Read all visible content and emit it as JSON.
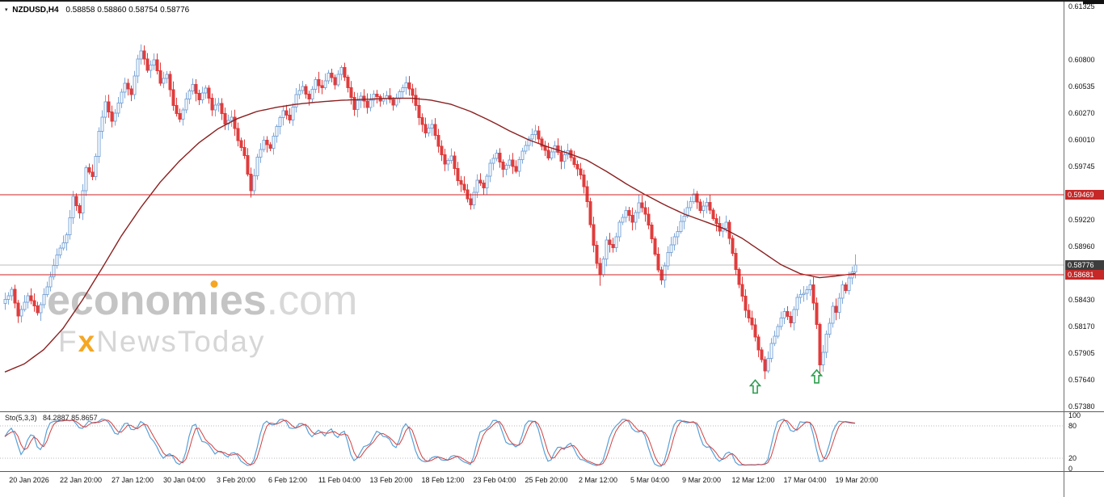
{
  "quote": {
    "symbol_timeframe": "NZDUSD,H4",
    "ohlc": "0.58858 0.58860 0.58754 0.58776",
    "dropdown_icon": "▾"
  },
  "watermark": {
    "brand_pre": "econom",
    "brand_i": "ı",
    "brand_post": "es",
    "brand_suffix": ".com",
    "tag_f": "F",
    "tag_x": "x",
    "tag_rest": "NewsToday"
  },
  "price_axis": {
    "labels": [
      {
        "t": "0.61325",
        "p": 0.61325
      },
      {
        "t": "0.60800",
        "p": 0.608
      },
      {
        "t": "0.60535",
        "p": 0.60535
      },
      {
        "t": "0.60270",
        "p": 0.6027
      },
      {
        "t": "0.60010",
        "p": 0.6001
      },
      {
        "t": "0.59745",
        "p": 0.59745
      },
      {
        "t": "0.59220",
        "p": 0.5922
      },
      {
        "t": "0.58960",
        "p": 0.5896
      },
      {
        "t": "0.58430",
        "p": 0.5843
      },
      {
        "t": "0.58170",
        "p": 0.5817
      },
      {
        "t": "0.57905",
        "p": 0.57905
      },
      {
        "t": "0.57640",
        "p": 0.5764
      },
      {
        "t": "0.57380",
        "p": 0.5738
      }
    ],
    "badges": [
      {
        "t": "0.59469",
        "p": 0.59469,
        "color": "#c62828",
        "kind": "level"
      },
      {
        "t": "0.58776",
        "p": 0.58776,
        "color": "#3d3d3d",
        "kind": "current"
      },
      {
        "t": "0.58681",
        "p": 0.58681,
        "color": "#c62828",
        "kind": "level"
      }
    ]
  },
  "time_axis": {
    "labels": [
      "20 Jan 2026",
      "22 Jan 20:00",
      "27 Jan 12:00",
      "30 Jan 04:00",
      "3 Feb 20:00",
      "6 Feb 12:00",
      "11 Feb 04:00",
      "13 Feb 20:00",
      "18 Feb 12:00",
      "23 Feb 04:00",
      "25 Feb 20:00",
      "2 Mar 12:00",
      "5 Mar 04:00",
      "9 Mar 20:00",
      "12 Mar 12:00",
      "17 Mar 04:00",
      "19 Mar 20:00"
    ]
  },
  "indicator": {
    "label": "Sto(5,3,3)",
    "values": "84.2887 85.8657",
    "axis": [
      {
        "t": "100",
        "v": 100
      },
      {
        "t": "80",
        "v": 80
      },
      {
        "t": "20",
        "v": 20
      },
      {
        "t": "0",
        "v": 0
      }
    ],
    "dotted_levels": [
      80,
      20
    ]
  },
  "colors": {
    "accent_orange": "#f5a623",
    "bull": "#7fa8d9",
    "bull_fill": "#ffffff",
    "bear": "#e03c3c",
    "ma_line": "#8b2020",
    "level_line": "#cc2222",
    "last_price_line": "#bdbdbd",
    "stoch_k": "#58a0d8",
    "stoch_d": "#d04040",
    "arrow_green": "#2f9e4f"
  },
  "chart_data": {
    "type": "candlestick",
    "symbol": "NZDUSD",
    "timeframe": "H4",
    "title": "NZDUSD H4 with 50-period MA, horizontal levels 0.59469 / 0.58681, Stochastic(5,3,3)",
    "ylim": [
      0.5738,
      0.61325
    ],
    "n_candles": 264,
    "last_close": 0.58776,
    "levels": {
      "resistance": 0.59469,
      "support": 0.58681,
      "last_price": 0.58776
    },
    "noise": 0.0003,
    "wick": 0.0006,
    "close_waypoints": [
      [
        0,
        0.5845
      ],
      [
        2,
        0.5852
      ],
      [
        4,
        0.5827
      ],
      [
        7,
        0.5848
      ],
      [
        10,
        0.5831
      ],
      [
        13,
        0.5856
      ],
      [
        16,
        0.5888
      ],
      [
        19,
        0.5906
      ],
      [
        21,
        0.5944
      ],
      [
        23,
        0.593
      ],
      [
        25,
        0.5974
      ],
      [
        27,
        0.5964
      ],
      [
        29,
        0.6008
      ],
      [
        31,
        0.6038
      ],
      [
        33,
        0.6018
      ],
      [
        35,
        0.6036
      ],
      [
        37,
        0.6058
      ],
      [
        39,
        0.6046
      ],
      [
        41,
        0.6082
      ],
      [
        42,
        0.609
      ],
      [
        44,
        0.607
      ],
      [
        46,
        0.608
      ],
      [
        48,
        0.6056
      ],
      [
        50,
        0.6066
      ],
      [
        52,
        0.6036
      ],
      [
        54,
        0.602
      ],
      [
        56,
        0.6042
      ],
      [
        58,
        0.6056
      ],
      [
        60,
        0.604
      ],
      [
        62,
        0.6052
      ],
      [
        64,
        0.603
      ],
      [
        66,
        0.6038
      ],
      [
        68,
        0.6016
      ],
      [
        70,
        0.6022
      ],
      [
        72,
        0.6
      ],
      [
        74,
        0.5984
      ],
      [
        76,
        0.595
      ],
      [
        78,
        0.5984
      ],
      [
        80,
        0.6
      ],
      [
        82,
        0.5992
      ],
      [
        84,
        0.6014
      ],
      [
        86,
        0.603
      ],
      [
        88,
        0.602
      ],
      [
        90,
        0.6046
      ],
      [
        92,
        0.6055
      ],
      [
        94,
        0.604
      ],
      [
        96,
        0.606
      ],
      [
        98,
        0.6052
      ],
      [
        100,
        0.6066
      ],
      [
        102,
        0.6056
      ],
      [
        104,
        0.6072
      ],
      [
        106,
        0.6052
      ],
      [
        108,
        0.6032
      ],
      [
        110,
        0.6044
      ],
      [
        112,
        0.6034
      ],
      [
        114,
        0.6047
      ],
      [
        116,
        0.6038
      ],
      [
        118,
        0.6044
      ],
      [
        120,
        0.6035
      ],
      [
        122,
        0.6047
      ],
      [
        124,
        0.6058
      ],
      [
        126,
        0.6044
      ],
      [
        128,
        0.6024
      ],
      [
        130,
        0.6008
      ],
      [
        132,
        0.6017
      ],
      [
        134,
        0.5995
      ],
      [
        136,
        0.5978
      ],
      [
        138,
        0.5986
      ],
      [
        140,
        0.5962
      ],
      [
        142,
        0.595
      ],
      [
        144,
        0.5938
      ],
      [
        146,
        0.5961
      ],
      [
        148,
        0.5954
      ],
      [
        150,
        0.5977
      ],
      [
        152,
        0.5987
      ],
      [
        154,
        0.5971
      ],
      [
        156,
        0.5981
      ],
      [
        158,
        0.597
      ],
      [
        160,
        0.5991
      ],
      [
        162,
        0.6001
      ],
      [
        164,
        0.6009
      ],
      [
        166,
        0.5995
      ],
      [
        168,
        0.5984
      ],
      [
        170,
        0.5995
      ],
      [
        172,
        0.598
      ],
      [
        174,
        0.599
      ],
      [
        176,
        0.5977
      ],
      [
        178,
        0.5967
      ],
      [
        180,
        0.594
      ],
      [
        181,
        0.5916
      ],
      [
        182,
        0.5896
      ],
      [
        183,
        0.5879
      ],
      [
        184,
        0.5868
      ],
      [
        185,
        0.5883
      ],
      [
        186,
        0.5901
      ],
      [
        188,
        0.5894
      ],
      [
        190,
        0.5919
      ],
      [
        192,
        0.5931
      ],
      [
        194,
        0.592
      ],
      [
        196,
        0.594
      ],
      [
        198,
        0.5927
      ],
      [
        200,
        0.5904
      ],
      [
        202,
        0.5874
      ],
      [
        203,
        0.5862
      ],
      [
        205,
        0.5889
      ],
      [
        207,
        0.5904
      ],
      [
        209,
        0.5919
      ],
      [
        211,
        0.5934
      ],
      [
        213,
        0.5947
      ],
      [
        215,
        0.5931
      ],
      [
        217,
        0.5939
      ],
      [
        219,
        0.5924
      ],
      [
        221,
        0.5911
      ],
      [
        223,
        0.5919
      ],
      [
        225,
        0.5889
      ],
      [
        227,
        0.5857
      ],
      [
        229,
        0.5834
      ],
      [
        231,
        0.5819
      ],
      [
        233,
        0.5794
      ],
      [
        235,
        0.5772
      ],
      [
        237,
        0.5799
      ],
      [
        239,
        0.5817
      ],
      [
        241,
        0.5831
      ],
      [
        243,
        0.5821
      ],
      [
        245,
        0.5844
      ],
      [
        247,
        0.5851
      ],
      [
        249,
        0.5857
      ],
      [
        250,
        0.5841
      ],
      [
        251,
        0.582
      ],
      [
        252,
        0.5778
      ],
      [
        253,
        0.5792
      ],
      [
        254,
        0.5809
      ],
      [
        255,
        0.5821
      ],
      [
        256,
        0.5836
      ],
      [
        257,
        0.583
      ],
      [
        258,
        0.5846
      ],
      [
        259,
        0.5858
      ],
      [
        260,
        0.5851
      ],
      [
        261,
        0.5866
      ],
      [
        262,
        0.5872
      ],
      [
        263,
        0.58776
      ]
    ],
    "wick_overrides": [
      {
        "i": 42,
        "h": 0.6095
      },
      {
        "i": 76,
        "l": 0.5944
      },
      {
        "i": 144,
        "l": 0.5934
      },
      {
        "i": 184,
        "l": 0.5857
      },
      {
        "i": 196,
        "h": 0.5947
      },
      {
        "i": 213,
        "h": 0.5952
      },
      {
        "i": 235,
        "l": 0.5765
      },
      {
        "i": 252,
        "l": 0.5768
      },
      {
        "i": 263,
        "h": 0.5888
      }
    ],
    "ma_waypoints": [
      [
        0,
        0.5772
      ],
      [
        6,
        0.578
      ],
      [
        12,
        0.5794
      ],
      [
        18,
        0.5815
      ],
      [
        24,
        0.5843
      ],
      [
        30,
        0.5874
      ],
      [
        36,
        0.5906
      ],
      [
        42,
        0.5934
      ],
      [
        48,
        0.5959
      ],
      [
        54,
        0.598
      ],
      [
        60,
        0.5998
      ],
      [
        66,
        0.6012
      ],
      [
        72,
        0.6022
      ],
      [
        78,
        0.6029
      ],
      [
        84,
        0.6033
      ],
      [
        90,
        0.6036
      ],
      [
        96,
        0.6038
      ],
      [
        104,
        0.604
      ],
      [
        112,
        0.6041
      ],
      [
        120,
        0.6042
      ],
      [
        126,
        0.6042
      ],
      [
        132,
        0.604
      ],
      [
        138,
        0.6036
      ],
      [
        144,
        0.6029
      ],
      [
        150,
        0.602
      ],
      [
        156,
        0.601
      ],
      [
        162,
        0.6001
      ],
      [
        168,
        0.5994
      ],
      [
        174,
        0.5988
      ],
      [
        180,
        0.5981
      ],
      [
        186,
        0.597
      ],
      [
        192,
        0.5958
      ],
      [
        198,
        0.5947
      ],
      [
        204,
        0.5937
      ],
      [
        210,
        0.5928
      ],
      [
        216,
        0.5921
      ],
      [
        222,
        0.5914
      ],
      [
        228,
        0.5904
      ],
      [
        234,
        0.5891
      ],
      [
        240,
        0.5878
      ],
      [
        246,
        0.5869
      ],
      [
        252,
        0.5865
      ],
      [
        258,
        0.5867
      ],
      [
        263,
        0.5869
      ]
    ],
    "arrows": [
      {
        "index": 232,
        "price": 0.5764
      },
      {
        "index": 251,
        "price": 0.5774
      }
    ],
    "stochastic": {
      "label": "Sto(5,3,3)",
      "k": 84.2887,
      "d": 85.8657,
      "scale": [
        0,
        20,
        80,
        100
      ],
      "dotted_levels": [
        80,
        20
      ]
    }
  }
}
